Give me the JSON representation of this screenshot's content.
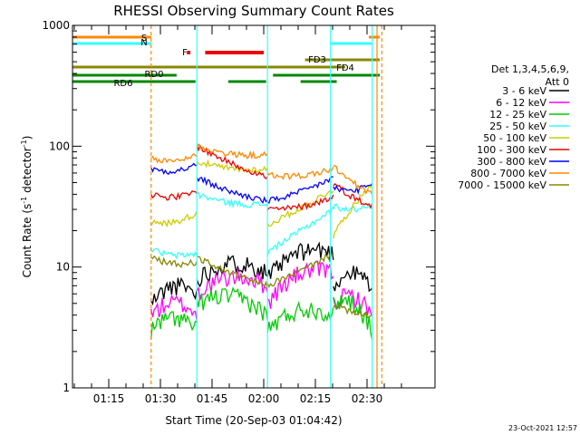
{
  "chart_data": {
    "type": "line",
    "title": "RHESSI Observing Summary Count Rates",
    "xlabel": "Start Time (20-Sep-03 01:04:42)",
    "ylabel_main": "Count Rate (s",
    "ylabel_sup1": "-1",
    "ylabel_mid": " detector",
    "ylabel_sup2": "-1",
    "ylabel_end": ")",
    "ylog": true,
    "ylim": [
      1,
      1000
    ],
    "xlim_minutes": [
      1.3,
      39.4
    ],
    "x_ticks": [
      {
        "label": "01:15",
        "minute": 10.3
      },
      {
        "label": "01:30",
        "minute": 25.3
      },
      {
        "label": "01:45",
        "minute": 40.3
      },
      {
        "label": "02:00",
        "minute": 55.3
      },
      {
        "label": "02:15",
        "minute": 70.3
      },
      {
        "label": "02:30",
        "minute": 85.3
      }
    ],
    "y_ticks": [
      {
        "label": "1",
        "value": 1
      },
      {
        "label": "10",
        "value": 10
      },
      {
        "label": "100",
        "value": 100
      },
      {
        "label": "1000",
        "value": 1000
      }
    ],
    "legend_header": [
      "Det 1,3,4,5,6,9,",
      "Att 0"
    ],
    "series": [
      {
        "name": "3 - 6 keV",
        "color": "#000000"
      },
      {
        "name": "6 - 12 keV",
        "color": "#ff00ff"
      },
      {
        "name": "12 - 25 keV",
        "color": "#00cc00"
      },
      {
        "name": "25 - 50 keV",
        "color": "#33ffff"
      },
      {
        "name": "50 - 100 keV",
        "color": "#cccc00"
      },
      {
        "name": "100 - 300 keV",
        "color": "#ee0000"
      },
      {
        "name": "300 - 800 keV",
        "color": "#0000ff"
      },
      {
        "name": "800 - 7000 keV",
        "color": "#ff8800"
      },
      {
        "name": "7000 - 15000 keV",
        "color": "#888800"
      }
    ],
    "flags": [
      {
        "label": "S",
        "color": "#ff8800"
      },
      {
        "label": "N",
        "color": "#33ffff"
      },
      {
        "label": "F",
        "color": "#ee0000"
      },
      {
        "label": "FD3",
        "color": "#888800"
      },
      {
        "label": "FD4",
        "color": "#888800"
      },
      {
        "label": "RD0",
        "color": "#008800"
      },
      {
        "label": "RD6",
        "color": "#008800"
      }
    ],
    "footer_date": "23-Oct-2021 12:57"
  }
}
